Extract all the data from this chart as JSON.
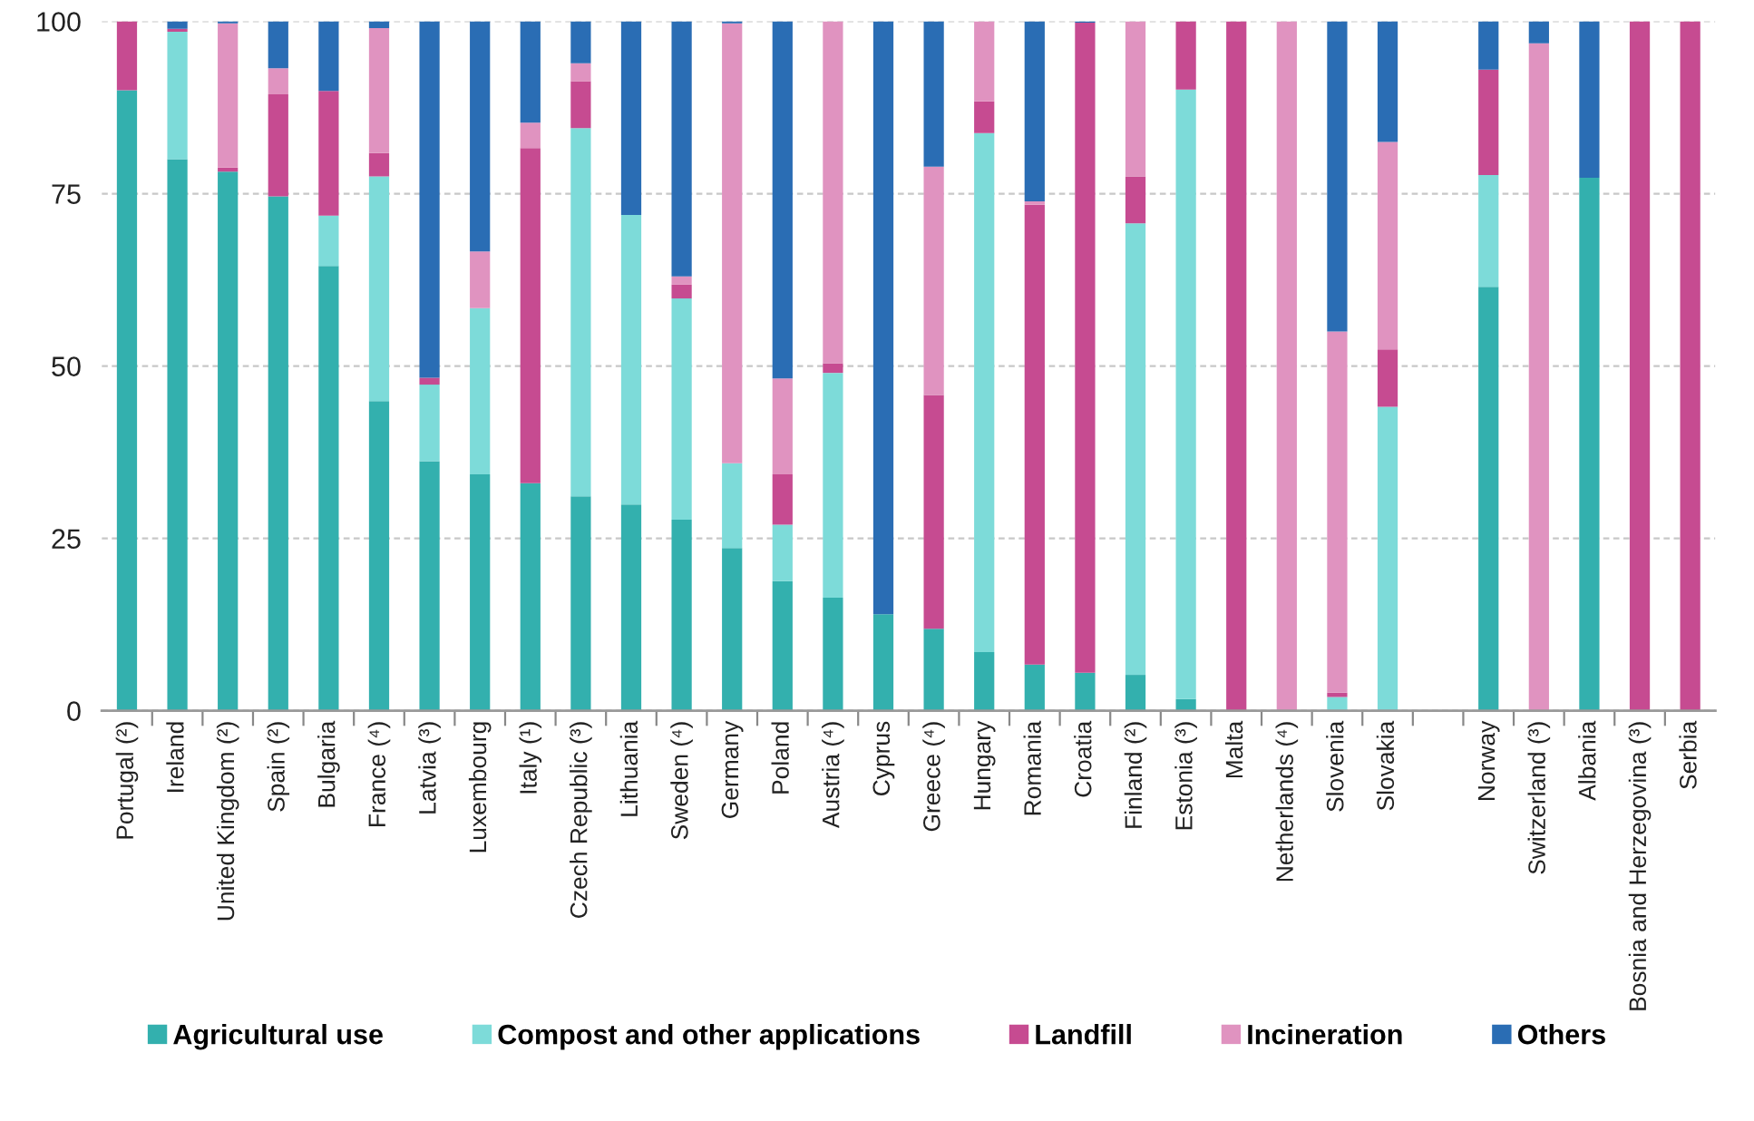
{
  "chart_data": {
    "type": "bar",
    "stacked": true,
    "categories": [
      "Portugal (²)",
      "Ireland",
      "United Kingdom (²)",
      "Spain (²)",
      "Bulgaria",
      "France (⁴)",
      "Latvia (³)",
      "Luxembourg",
      "Italy (¹)",
      "Czech Republic (³)",
      "Lithuania",
      "Sweden (⁴)",
      "Germany",
      "Poland",
      "Austria (⁴)",
      "Cyprus",
      "Greece (⁴)",
      "Hungary",
      "Romania",
      "Croatia",
      "Finland (²)",
      "Estonia (³)",
      "Malta",
      "Netherlands (⁴)",
      "Slovenia",
      "Slovakia",
      null,
      "Norway",
      "Switzerland (³)",
      "Albania",
      "Bosnia and Herzegovina (³)",
      "Serbia"
    ],
    "series": [
      {
        "name": "Agricultural use",
        "color": "#33b0ae",
        "values": [
          90,
          80,
          78.2,
          74.6,
          64.5,
          44.9,
          36.2,
          34.3,
          33.0,
          31.1,
          29.9,
          27.7,
          23.6,
          18.8,
          16.4,
          14.0,
          11.9,
          8.5,
          6.7,
          5.5,
          5.2,
          1.7,
          null,
          null,
          null,
          null,
          null,
          61.5,
          null,
          77.3,
          null,
          null
        ]
      },
      {
        "name": "Compost and other applications",
        "color": "#7ddbd9",
        "values": [
          null,
          18.5,
          null,
          null,
          7.3,
          32.6,
          11.1,
          24.1,
          null,
          53.4,
          42.0,
          32.1,
          12.3,
          8.2,
          32.6,
          null,
          null,
          75.3,
          null,
          null,
          65.5,
          88.4,
          null,
          null,
          2.0,
          44.1,
          null,
          16.2,
          null,
          null,
          null,
          null
        ]
      },
      {
        "name": "Landfill",
        "color": "#c64b91",
        "values": [
          10,
          0.4,
          0.6,
          14.8,
          18.1,
          3.4,
          1.0,
          null,
          48.6,
          6.8,
          null,
          2.0,
          null,
          7.3,
          1.4,
          null,
          33.9,
          4.6,
          66.7,
          94.3,
          6.8,
          9.9,
          100,
          null,
          0.6,
          8.3,
          null,
          15.3,
          null,
          null,
          100,
          100
        ]
      },
      {
        "name": "Incineration",
        "color": "#e093c0",
        "values": [
          null,
          null,
          20.9,
          3.8,
          null,
          18.1,
          null,
          8.2,
          3.7,
          2.6,
          null,
          1.2,
          63.8,
          13.9,
          49.6,
          null,
          33.1,
          11.6,
          0.5,
          null,
          22.5,
          null,
          null,
          100,
          52.4,
          30.1,
          null,
          null,
          96.8,
          null,
          null,
          null
        ]
      },
      {
        "name": "Others",
        "color": "#2a6db4",
        "values": [
          null,
          1.1,
          0.3,
          6.8,
          10.1,
          1.0,
          51.7,
          33.4,
          14.7,
          6.1,
          28.1,
          37.0,
          0.3,
          51.8,
          null,
          86.0,
          21.1,
          null,
          26.1,
          0.2,
          null,
          null,
          null,
          null,
          45.0,
          17.5,
          null,
          7.0,
          3.2,
          22.7,
          null,
          null
        ]
      }
    ],
    "ylim": [
      0,
      100
    ],
    "yticks": [
      0,
      25,
      50,
      75,
      100
    ],
    "grid": "y",
    "legend": "bottom"
  }
}
